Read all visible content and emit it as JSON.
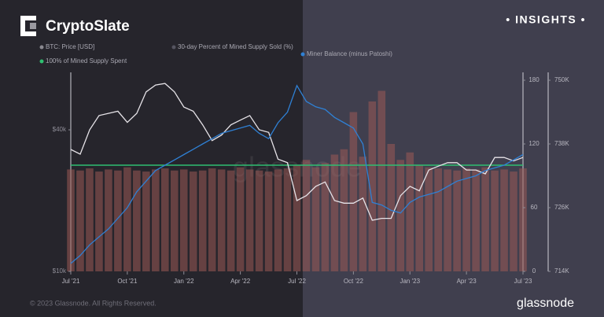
{
  "header": {
    "logo": "CryptoSlate",
    "badge": "• INSIGHTS •"
  },
  "chart_data": {
    "type": "line",
    "xlim": [
      0,
      24
    ],
    "xticks": [
      {
        "value": 0,
        "label": "Jul '21"
      },
      {
        "value": 3,
        "label": "Oct '21"
      },
      {
        "value": 6,
        "label": "Jan '22"
      },
      {
        "value": 9,
        "label": "Apr '22"
      },
      {
        "value": 12,
        "label": "Jul '22"
      },
      {
        "value": 15,
        "label": "Oct '22"
      },
      {
        "value": 18,
        "label": "Jan '23"
      },
      {
        "value": 21,
        "label": "Apr '23"
      },
      {
        "value": 24,
        "label": "Jul '23"
      }
    ],
    "x": [
      0,
      0.5,
      1,
      1.5,
      2,
      2.5,
      3,
      3.5,
      4,
      4.5,
      5,
      5.5,
      6,
      6.5,
      7,
      7.5,
      8,
      8.5,
      9,
      9.5,
      10,
      10.5,
      11,
      11.5,
      12,
      12.5,
      13,
      13.5,
      14,
      14.5,
      15,
      15.5,
      16,
      16.5,
      17,
      17.5,
      18,
      18.5,
      19,
      19.5,
      20,
      20.5,
      21,
      21.5,
      22,
      22.5,
      23,
      23.5,
      24
    ],
    "ylim": [
      10000,
      65000
    ],
    "ylog": true,
    "yticks": [
      {
        "value": 10000,
        "label": "$10k"
      },
      {
        "value": 40000,
        "label": "$40k"
      }
    ],
    "y2lim": [
      0,
      180
    ],
    "y2ticks": [
      0,
      60,
      120,
      180
    ],
    "y3lim": [
      714000,
      750000
    ],
    "y3ticks": [
      {
        "value": 714000,
        "label": "714K"
      },
      {
        "value": 726000,
        "label": "726K"
      },
      {
        "value": 738000,
        "label": "738K"
      },
      {
        "value": 750000,
        "label": "750K"
      }
    ],
    "series": [
      {
        "name": "30-day Percent of Mined Supply Sold (%)",
        "type": "bar",
        "axis": "y2",
        "color": "#9a5a56",
        "values": [
          96,
          95,
          97,
          94,
          96,
          95,
          98,
          95,
          94,
          96,
          97,
          95,
          96,
          94,
          95,
          97,
          96,
          95,
          98,
          96,
          95,
          94,
          96,
          97,
          100,
          105,
          98,
          102,
          110,
          115,
          150,
          108,
          160,
          170,
          120,
          105,
          112,
          100,
          98,
          97,
          96,
          95,
          97,
          96,
          98,
          95,
          96,
          94,
          97
        ]
      },
      {
        "name": "BTC: Price [USD]",
        "type": "line",
        "axis": "y",
        "color": "#e6e3e8",
        "values": [
          33000,
          31500,
          40000,
          46000,
          47000,
          48000,
          43000,
          47000,
          58000,
          62000,
          63000,
          58000,
          50000,
          48000,
          42000,
          36000,
          38000,
          42000,
          44000,
          46000,
          40000,
          39000,
          30000,
          29000,
          20000,
          21000,
          23000,
          24000,
          20000,
          19500,
          19500,
          20500,
          16500,
          16800,
          16800,
          21000,
          23000,
          22000,
          27000,
          28000,
          29000,
          29000,
          27000,
          27000,
          26000,
          30500,
          30500,
          29500,
          30500
        ]
      },
      {
        "name": "Miner Balance (minus Patoshi)",
        "type": "line",
        "axis": "y3",
        "color": "#2f80d4",
        "values": [
          715500,
          717000,
          719000,
          720500,
          722000,
          724000,
          726000,
          729000,
          731000,
          733000,
          734000,
          735000,
          736000,
          737000,
          738000,
          739000,
          740000,
          740500,
          741000,
          741500,
          740000,
          739000,
          742000,
          744000,
          749000,
          746000,
          745000,
          744500,
          743000,
          742000,
          741000,
          738000,
          727000,
          726500,
          725500,
          725000,
          727000,
          728000,
          728500,
          729000,
          730000,
          731000,
          731500,
          732000,
          733000,
          733500,
          734000,
          735000,
          736000
        ]
      }
    ],
    "reference_line": {
      "name": "100% of Mined Supply Spent",
      "value": 100,
      "axis": "y2",
      "color": "#2fbf71"
    }
  },
  "footer": {
    "copyright": "© 2023 Glassnode. All Rights Reserved.",
    "brand": "glassnode"
  }
}
